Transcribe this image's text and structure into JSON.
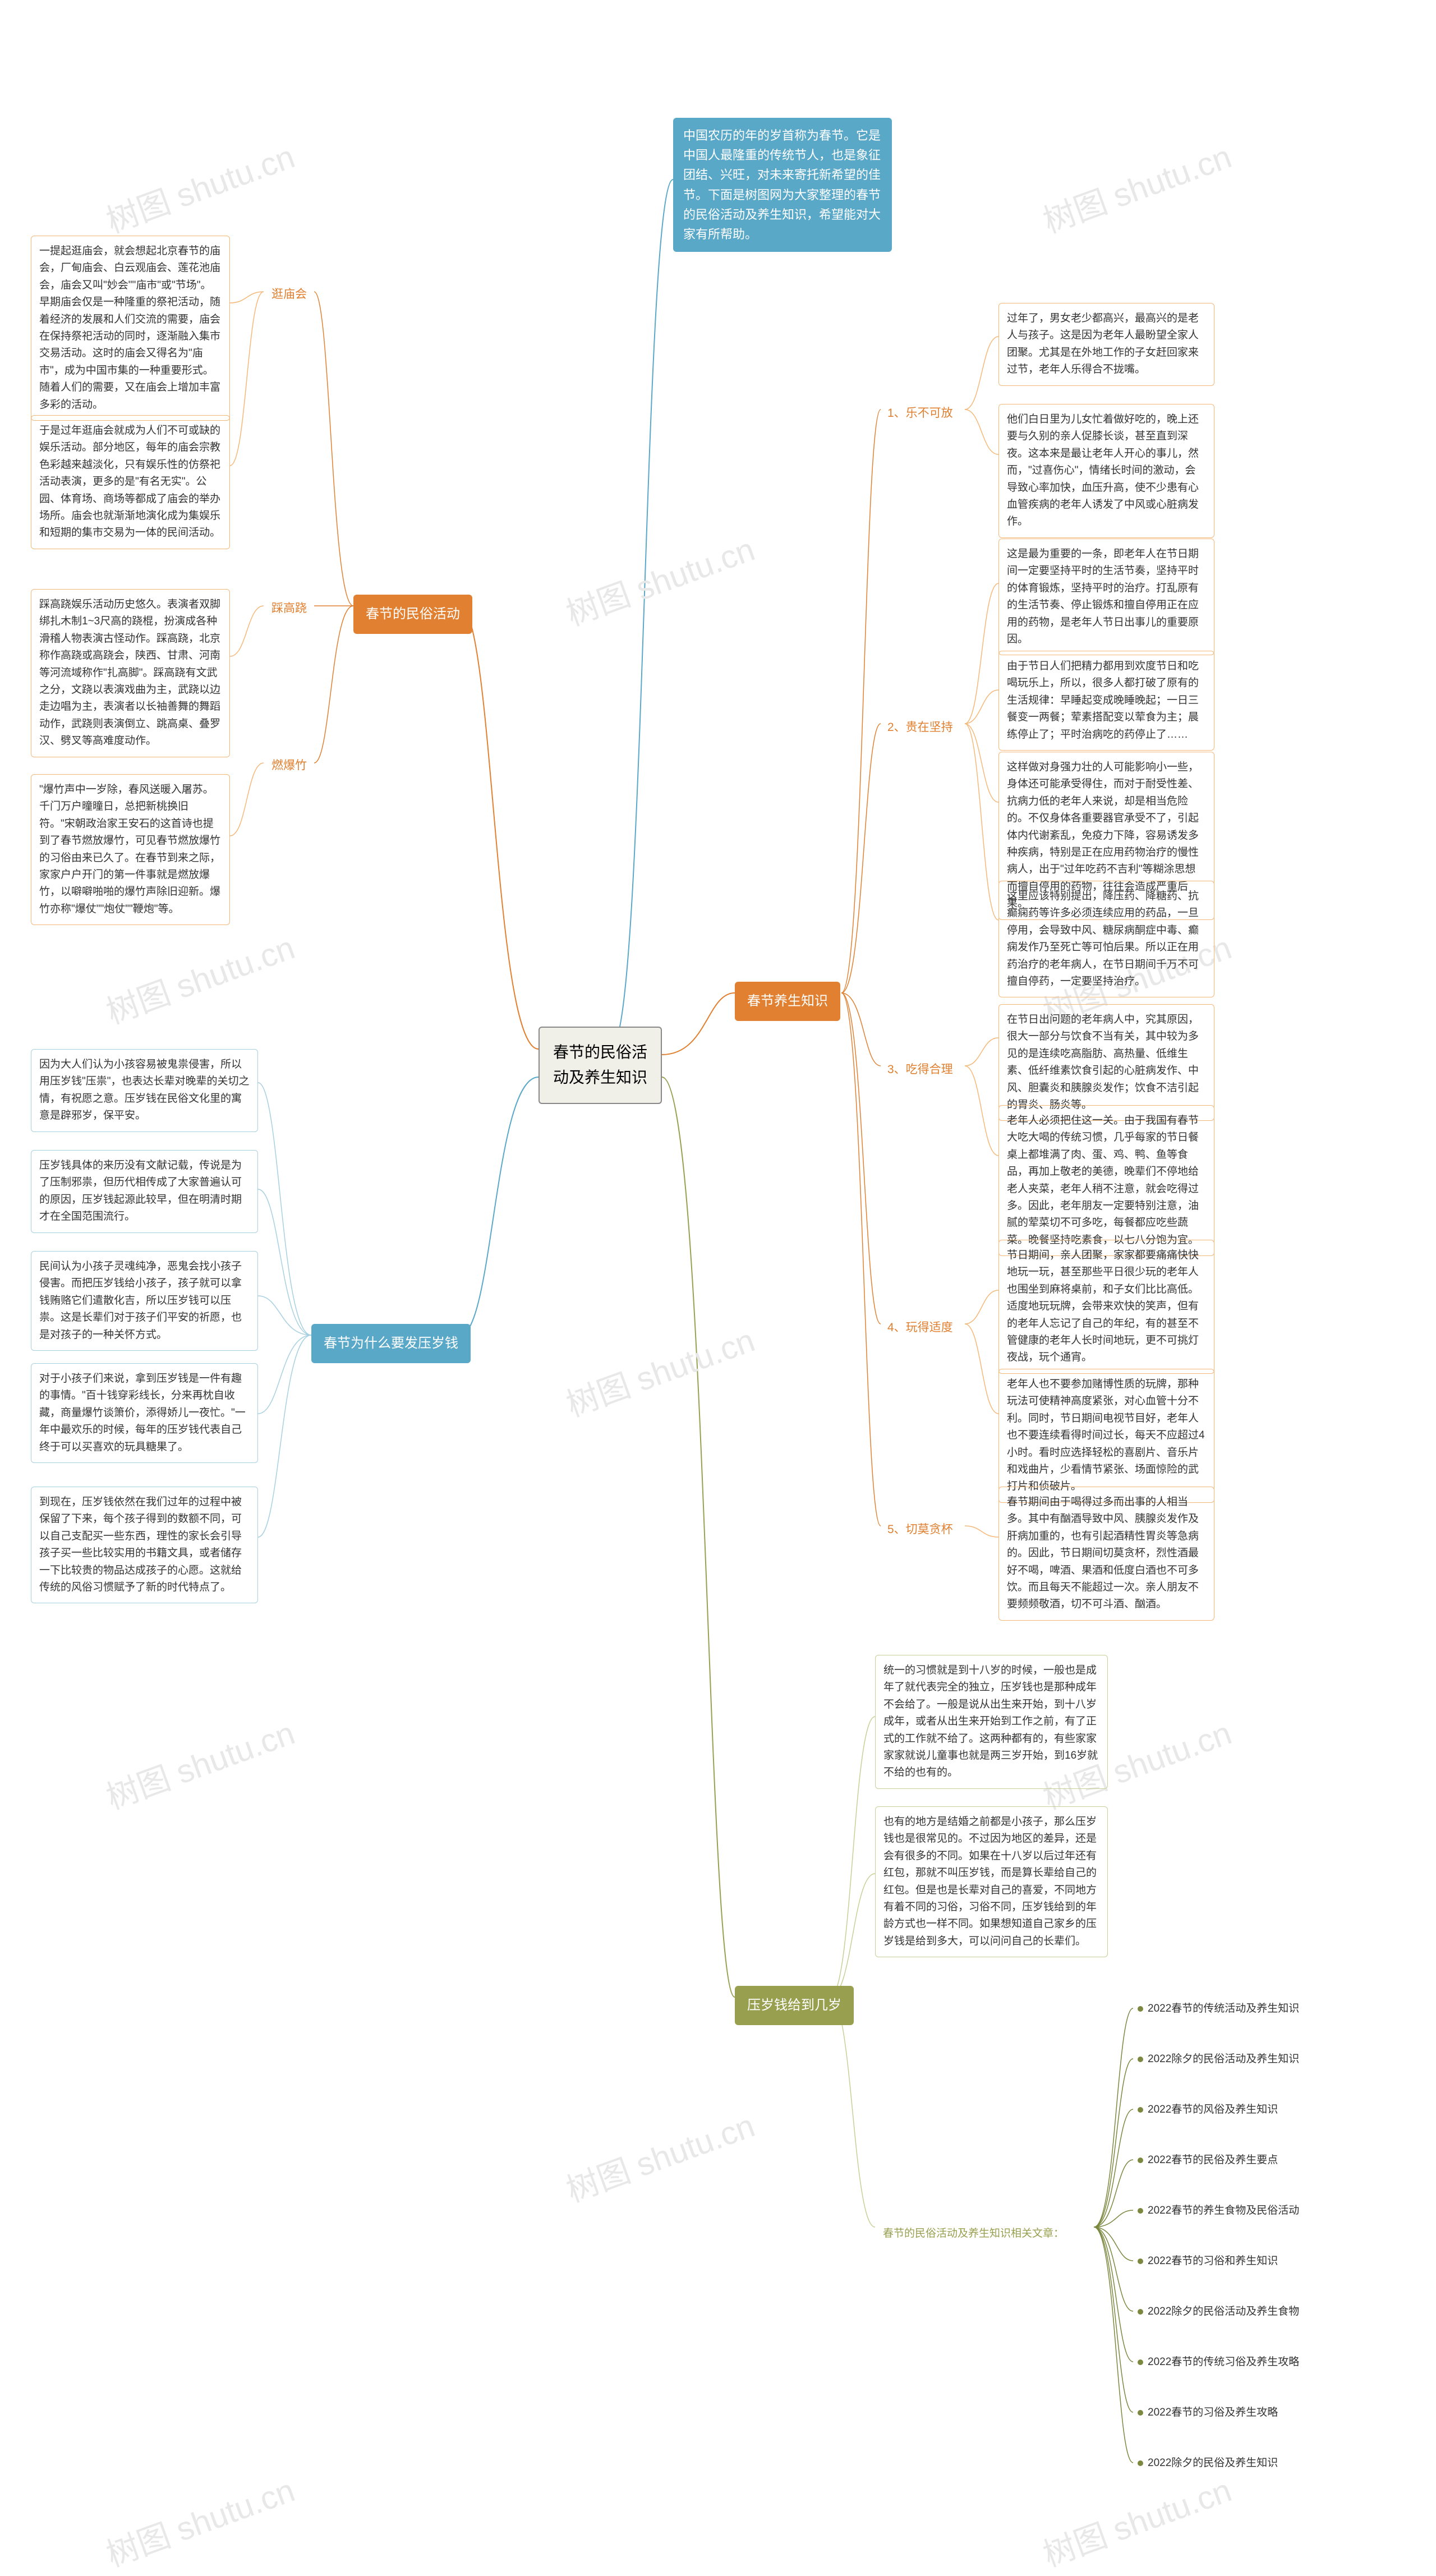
{
  "colors": {
    "center_border": "#888888",
    "center_bg": "#f0efe8",
    "intro_bg": "#5aa8c8",
    "orange": "#e08030",
    "orange_light": "#f5b878",
    "teal": "#5aa8c8",
    "teal_light": "#a6d0e0",
    "olive": "#98a050",
    "olive_light": "#c8cf96",
    "olive_dark": "#7a8840",
    "watermark": "#e8e8e8",
    "bg": "#ffffff",
    "text": "#333333"
  },
  "watermark_text": "树图 shutu.cn",
  "center": "春节的民俗活动及养生知识",
  "intro": "中国农历的年的岁首称为春节。它是中国人最隆重的传统节人，也是象征团结、兴旺，对未来寄托新希望的佳节。下面是树图网为大家整理的春节的民俗活动及养生知识，希望能对大家有所帮助。",
  "categories": {
    "folk": {
      "label": "春节的民俗活动",
      "subs": {
        "temple": {
          "label": "逛庙会"
        },
        "stilts": {
          "label": "踩高跷"
        },
        "firecracker": {
          "label": "燃爆竹"
        }
      },
      "leaves": {
        "t1": "一提起逛庙会，就会想起北京春节的庙会，厂甸庙会、白云观庙会、莲花池庙会，庙会又叫\"妙会\"\"庙市\"或\"节场\"。早期庙会仅是一种隆重的祭祀活动，随着经济的发展和人们交流的需要，庙会在保持祭祀活动的同时，逐渐融入集市交易活动。这时的庙会又得名为\"庙市\"，成为中国市集的一种重要形式。随着人们的需要，又在庙会上增加丰富多彩的活动。",
        "t2": "于是过年逛庙会就成为人们不可或缺的娱乐活动。部分地区，每年的庙会宗教色彩越来越淡化，只有娱乐性的仿祭祀活动表演，更多的是\"有名无实\"。公园、体育场、商场等都成了庙会的举办场所。庙会也就渐渐地演化成为集娱乐和短期的集市交易为一体的民间活动。",
        "s1": "踩高跷娱乐活动历史悠久。表演者双脚绑扎木制1~3尺高的跷棍，扮演成各种滑稽人物表演古怪动作。踩高跷，北京称作高跷或高跷会，陕西、甘肃、河南等河流域称作\"扎高脚\"。踩高跷有文武之分，文跷以表演戏曲为主，武跷以边走边唱为主，表演者以长袖善舞的舞蹈动作，武跷则表演倒立、跳高桌、叠罗汉、劈叉等高难度动作。",
        "f1": "\"爆竹声中一岁除，春风送暖入屠苏。千门万户曈曈日，总把新桃换旧符。\"宋朝政治家王安石的这首诗也提到了春节燃放爆竹，可见春节燃放爆竹的习俗由来已久了。在春节到来之际，家家户户开门的第一件事就是燃放爆竹，以噼噼啪啪的爆竹声除旧迎新。爆竹亦称\"爆仗\"\"炮仗\"\"鞭炮\"等。"
      }
    },
    "health": {
      "label": "春节养生知识",
      "subs": {
        "h1": {
          "label": "1、乐不可放"
        },
        "h2": {
          "label": "2、贵在坚持"
        },
        "h3": {
          "label": "3、吃得合理"
        },
        "h4": {
          "label": "4、玩得适度"
        },
        "h5": {
          "label": "5、切莫贪杯"
        }
      },
      "leaves": {
        "h1a": "过年了，男女老少都高兴，最高兴的是老人与孩子。这是因为老年人最盼望全家人团聚。尤其是在外地工作的子女赶回家来过节，老年人乐得合不拢嘴。",
        "h1b": "他们白日里为儿女忙着做好吃的，晚上还要与久别的亲人促膝长谈，甚至直到深夜。这本来是最让老年人开心的事儿，然而，\"过喜伤心\"，情绪长时间的激动，会导致心率加快，血压升高，使不少患有心血管疾病的老年人诱发了中风或心脏病发作。",
        "h2a": "这是最为重要的一条，即老年人在节日期间一定要坚持平时的生活节奏，坚持平时的体育锻炼，坚持平时的治疗。打乱原有的生活节奏、停止锻炼和擅自停用正在应用的药物，是老年人节日出事儿的重要原因。",
        "h2b": "由于节日人们把精力都用到欢度节日和吃喝玩乐上，所以，很多人都打破了原有的生活规律：早睡起变成晚睡晚起；一日三餐变一两餐；荤素搭配变以荤食为主；晨练停止了；平时治病吃的药停止了……",
        "h2c": "这样做对身强力壮的人可能影响小一些，身体还可能承受得住，而对于耐受性差、抗病力低的老年人来说，却是相当危险的。不仅身体各重要器官承受不了，引起体内代谢紊乱，免疫力下降，容易诱发多种疾病，特别是正在应用药物治疗的慢性病人，出于\"过年吃药不吉利\"等糊涂思想而擅自停用的药物，往往会造成严重后果。",
        "h2d": "这里应该特别提出，降压药、降糖药、抗癫痫药等许多必须连续应用的药品，一旦停用，会导致中风、糖尿病酮症中毒、癫痫发作乃至死亡等可怕后果。所以正在用药治疗的老年病人，在节日期间千万不可擅自停药，一定要坚持治疗。",
        "h3a": "在节日出问题的老年病人中，究其原因，很大一部分与饮食不当有关，其中较为多见的是连续吃高脂肪、高热量、低维生素、低纤维素饮食引起的心脏病发作、中风、胆囊炎和胰腺炎发作；饮食不洁引起的胃炎、肠炎等。",
        "h3b": "老年人必须把住这一关。由于我国有春节大吃大喝的传统习惯，几乎每家的节日餐桌上都堆满了肉、蛋、鸡、鸭、鱼等食品，再加上敬老的美德，晚辈们不停地给老人夹菜，老年人稍不注意，就会吃得过多。因此，老年朋友一定要特别注意，油腻的荤菜切不可多吃，每餐都应吃些蔬菜。晚餐坚持吃素食，以七八分饱为宜。",
        "h4a": "节日期间，亲人团聚，家家都要痛痛快快地玩一玩，甚至那些平日很少玩的老年人也围坐到麻将桌前，和子女们比比高低。适度地玩玩牌，会带来欢快的笑声，但有的老年人忘记了自己的年纪，有的甚至不管健康的老年人长时间地玩，更不可挑灯夜战，玩个通宵。",
        "h4b": "老年人也不要参加赌博性质的玩牌，那种玩法可使精神高度紧张，对心血管十分不利。同时，节日期间电视节目好，老年人也不要连续看得时间过长，每天不应超过4小时。看时应选择轻松的喜剧片、音乐片和戏曲片，少看情节紧张、场面惊险的武打片和侦破片。",
        "h5a": "春节期间由于喝得过多而出事的人相当多。其中有酗酒导致中风、胰腺炎发作及肝病加重的，也有引起酒精性胃炎等急病的。因此，节日期间切莫贪杯，烈性酒最好不喝，啤酒、果酒和低度白酒也不可多饮。而且每天不能超过一次。亲人朋友不要频频敬酒，切不可斗酒、酗酒。"
      }
    },
    "money": {
      "label": "春节为什么要发压岁钱",
      "leaves": {
        "m1": "因为大人们认为小孩容易被鬼祟侵害，所以用压岁钱\"压祟\"，也表达长辈对晚辈的关切之情，有祝愿之意。压岁钱在民俗文化里的寓意是辟邪岁，保平安。",
        "m2": "压岁钱具体的来历没有文献记载，传说是为了压制邪祟，但历代相传成了大家普遍认可的原因，压岁钱起源此较早，但在明清时期才在全国范围流行。",
        "m3": "民间认为小孩子灵魂纯净，恶鬼会找小孩子侵害。而把压岁钱给小孩子，孩子就可以拿钱贿赂它们遣散化吉，所以压岁钱可以压祟。这是长辈们对于孩子们平安的祈愿，也是对孩子的一种关怀方式。",
        "m4": "对于小孩子们来说，拿到压岁钱是一件有趣的事情。\"百十钱穿彩线长，分来再枕自收藏，商量爆竹谈箫价，添得娇儿一夜忙。\"一年中最欢乐的时候，每年的压岁钱代表自己终于可以买喜欢的玩具糖果了。",
        "m5": "到现在，压岁钱依然在我们过年的过程中被保留了下来，每个孩子得到的数额不同，可以自己支配买一些东西，理性的家长会引导孩子买一些比较实用的书籍文具，或者储存一下比较贵的物品达成孩子的心愿。这就给传统的风俗习惯赋予了新的时代特点了。"
      }
    },
    "age": {
      "label": "压岁钱给到几岁",
      "leaves": {
        "a1": "统一的习惯就是到十八岁的时候，一般也是成年了就代表完全的独立，压岁钱也是那种成年不会给了。一般是说从出生来开始，到十八岁成年，或者从出生来开始到工作之前，有了正式的工作就不给了。这两种都有的，有些家家家家就说儿童事也就是两三岁开始，到16岁就不给的也有的。",
        "a2": "也有的地方是结婚之前都是小孩子，那么压岁钱也是很常见的。不过因为地区的差异，还是会有很多的不同。如果在十八岁以后过年还有红包，那就不叫压岁钱，而是算长辈给自己的红包。但是也是长辈对自己的喜爱，不同地方有着不同的习俗，习俗不同，压岁钱给到的年龄方式也一样不同。如果想知道自己家乡的压岁钱是给到多大，可以问问自己的长辈们。"
      },
      "related_title": "春节的民俗活动及养生知识相关文章：",
      "related": [
        "2022春节的传统活动及养生知识",
        "2022除夕的民俗活动及养生知识",
        "2022春节的风俗及养生知识",
        "2022春节的民俗及养生要点",
        "2022春节的养生食物及民俗活动",
        "2022春节的习俗和养生知识",
        "2022除夕的民俗活动及养生食物",
        "2022春节的传统习俗及养生攻略",
        "2022春节的习俗及养生攻略",
        "2022除夕的民俗及养生知识"
      ]
    }
  }
}
